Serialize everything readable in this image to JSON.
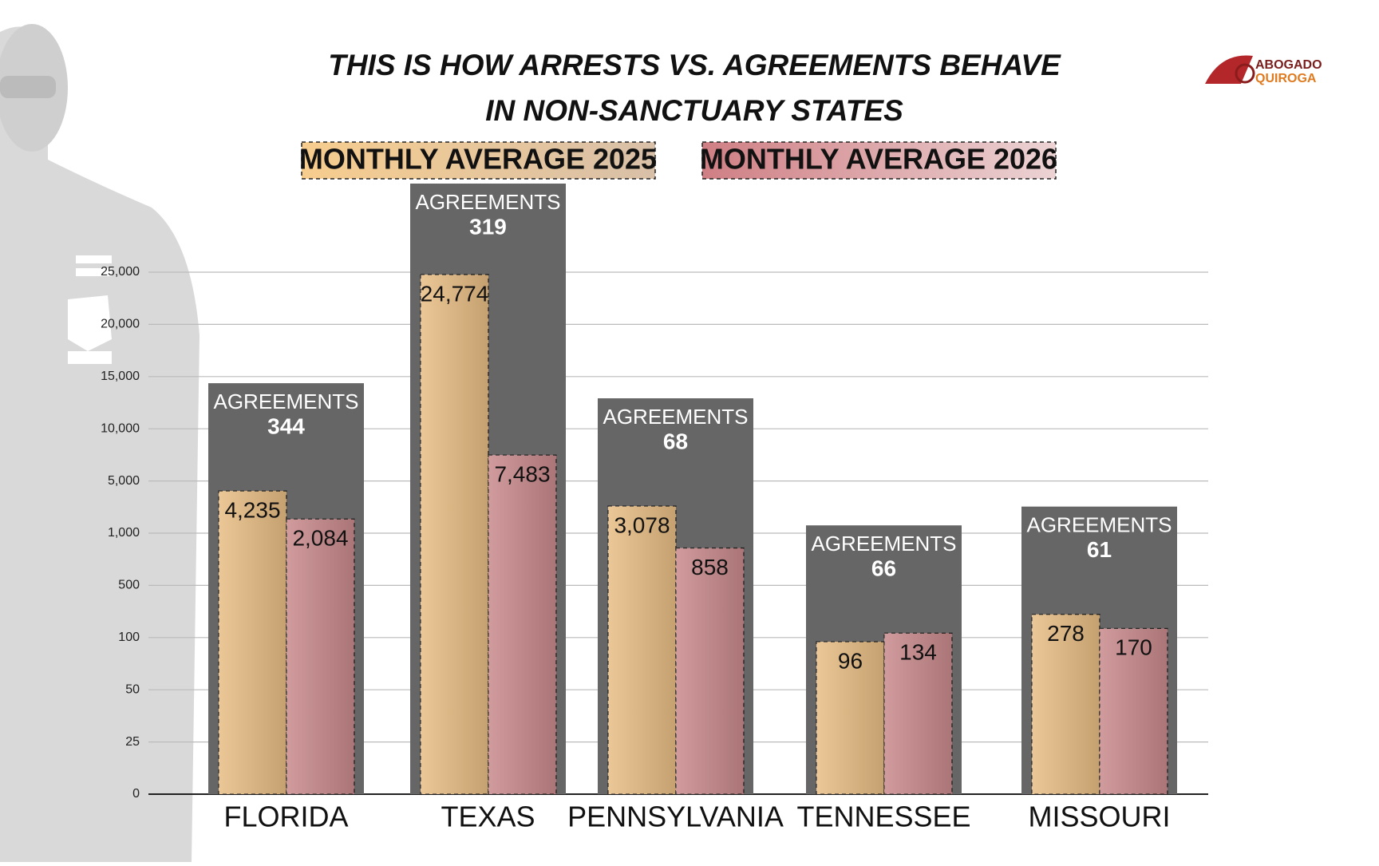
{
  "chart_data": {
    "type": "bar",
    "title": [
      "THIS IS HOW ARRESTS VS. AGREEMENTS BEHAVE",
      "IN NON-SANCTUARY STATES"
    ],
    "categories": [
      "FLORIDA",
      "TEXAS",
      "PENNSYLVANIA",
      "TENNESSEE",
      "MISSOURI"
    ],
    "series": [
      {
        "name": "MONTHLY AVERAGE 2025",
        "color": "#e8bd84",
        "values": [
          4235,
          24774,
          3078,
          96,
          278
        ],
        "value_labels": [
          "4,235",
          "24,774",
          "3,078",
          "96",
          "278"
        ]
      },
      {
        "name": "MONTHLY AVERAGE 2026",
        "color": "#c98a8c",
        "values": [
          2084,
          7483,
          858,
          134,
          170
        ],
        "value_labels": [
          "2,084",
          "7,483",
          "858",
          "134",
          "170"
        ]
      }
    ],
    "agreements_label": "AGREEMENTS",
    "agreements": [
      344,
      319,
      68,
      66,
      61
    ],
    "agreements_color": "#666666",
    "ylim": [
      0,
      25000
    ],
    "yticks": [
      0,
      25,
      50,
      100,
      500,
      {
        "value": 1000,
        "label": "1,000"
      },
      {
        "value": 5000,
        "label": "5,000"
      },
      {
        "value": 10000,
        "label": "10,000"
      },
      {
        "value": 15000,
        "label": "15,000"
      },
      {
        "value": 20000,
        "label": "20,000"
      },
      {
        "value": 25000,
        "label": "25,000"
      }
    ],
    "grid": true
  },
  "logo": {
    "line1": "ABOGADO",
    "line2": "QUIROGA"
  }
}
